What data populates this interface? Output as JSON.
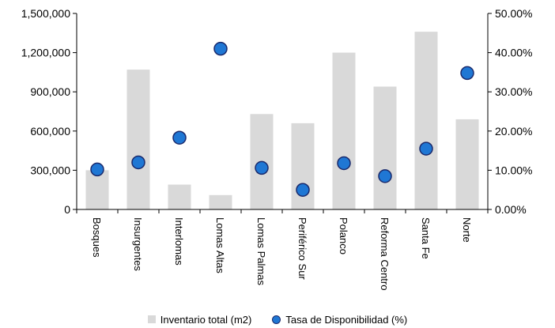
{
  "chart_data": {
    "type": "bar+scatter",
    "categories": [
      "Bosques",
      "Insurgentes",
      "Interlomas",
      "Lomas Altas",
      "Lomas Palmas",
      "Periférico Sur",
      "Polanco",
      "Reforma Centro",
      "Santa Fe",
      "Norte"
    ],
    "series": [
      {
        "name": "Inventario total (m2)",
        "type": "bar",
        "axis": "left",
        "color": "#d9d9d9",
        "values": [
          300000,
          1070000,
          190000,
          110000,
          730000,
          660000,
          1200000,
          940000,
          1360000,
          690000
        ]
      },
      {
        "name": "Tasa de Disponibilidad (%)",
        "type": "scatter",
        "axis": "right",
        "color": "#1f77d4",
        "edge_color": "#1a2a6c",
        "values": [
          10.2,
          12.0,
          18.3,
          41.0,
          10.6,
          5.0,
          11.8,
          8.5,
          15.5,
          34.8
        ]
      }
    ],
    "y_left": {
      "min": 0,
      "max": 1500000,
      "ticks": [
        "0",
        "300,000",
        "600,000",
        "900,000",
        "1,200,000",
        "1,500,000"
      ],
      "tick_values": [
        0,
        300000,
        600000,
        900000,
        1200000,
        1500000
      ]
    },
    "y_right": {
      "min": 0,
      "max": 50,
      "ticks": [
        "0.00%",
        "10.00%",
        "20.00%",
        "30.00%",
        "40.00%",
        "50.00%"
      ],
      "tick_values": [
        0,
        10,
        20,
        30,
        40,
        50
      ]
    },
    "legend": {
      "position": "bottom",
      "items": [
        "Inventario total (m2)",
        "Tasa de Disponibilidad (%)"
      ]
    },
    "grid": false
  }
}
